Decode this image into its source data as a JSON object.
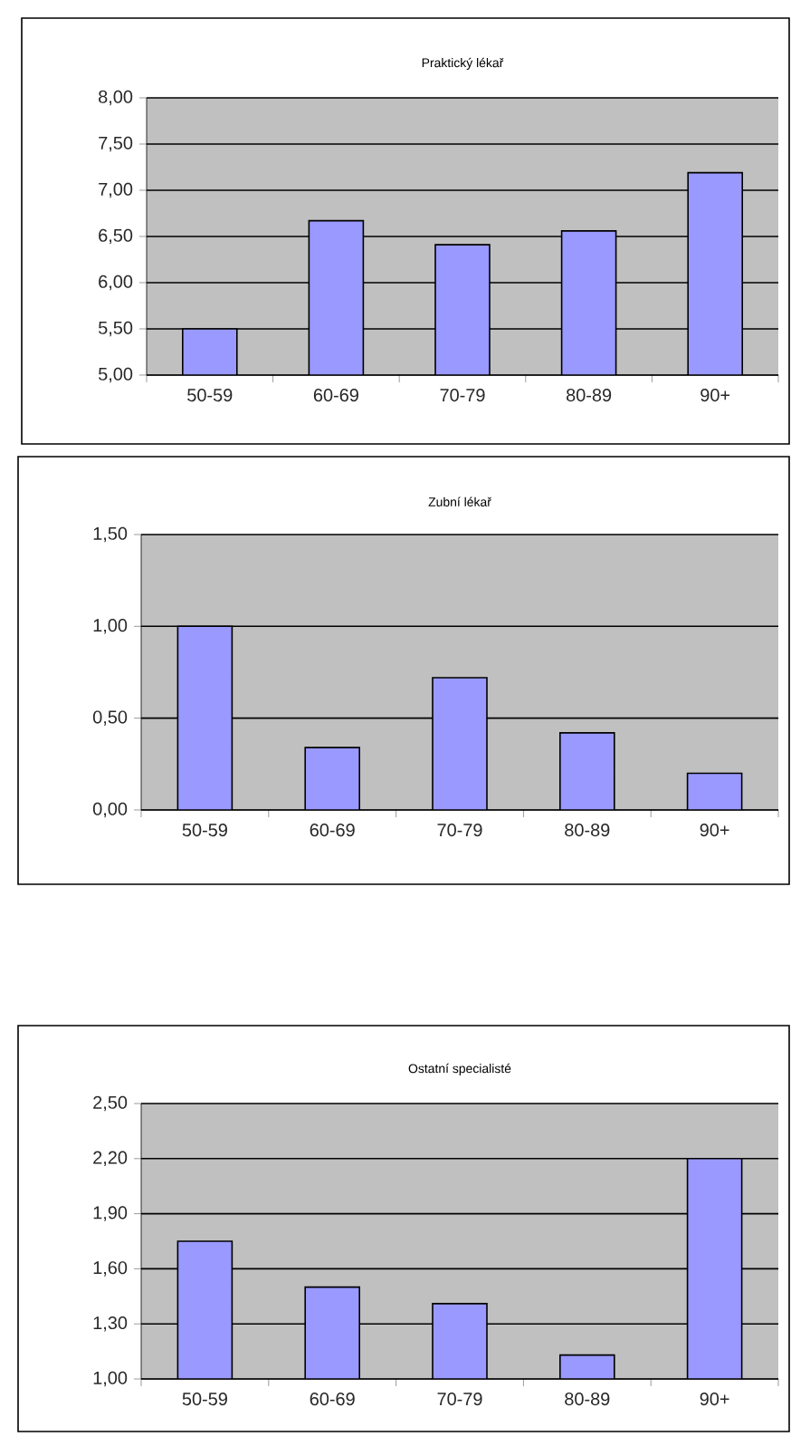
{
  "chart_data": [
    {
      "type": "bar",
      "title": "Praktický lékař",
      "categories": [
        "50-59",
        "60-69",
        "70-79",
        "80-89",
        "90+"
      ],
      "values": [
        5.5,
        6.67,
        6.41,
        6.56,
        7.19
      ],
      "color": "#9999ff",
      "ylim": [
        5,
        8
      ],
      "yticks": [
        {
          "value": 5,
          "label": "5,00"
        },
        {
          "value": 5.5,
          "label": "5,50"
        },
        {
          "value": 6,
          "label": "6,00"
        },
        {
          "value": 6.5,
          "label": "6,50"
        },
        {
          "value": 7,
          "label": "7,00"
        },
        {
          "value": 7.5,
          "label": "7,50"
        },
        {
          "value": 8,
          "label": "8,00"
        }
      ],
      "grid": "y"
    },
    {
      "type": "bar",
      "title": "Zubní lékař",
      "categories": [
        "50-59",
        "60-69",
        "70-79",
        "80-89",
        "90+"
      ],
      "values": [
        1.0,
        0.34,
        0.72,
        0.42,
        0.2
      ],
      "color": "#9999ff",
      "ylim": [
        0,
        1.5
      ],
      "yticks": [
        {
          "value": 0,
          "label": "0,00"
        },
        {
          "value": 0.5,
          "label": "0,50"
        },
        {
          "value": 1,
          "label": "1,00"
        },
        {
          "value": 1.5,
          "label": "1,50"
        }
      ],
      "grid": "y"
    },
    {
      "type": "bar",
      "title": "Ostatní specialisté",
      "categories": [
        "50-59",
        "60-69",
        "70-79",
        "80-89",
        "90+"
      ],
      "values": [
        1.75,
        1.5,
        1.41,
        1.13,
        2.2
      ],
      "color": "#9999ff",
      "ylim": [
        1,
        2.5
      ],
      "yticks": [
        {
          "value": 1,
          "label": "1,00"
        },
        {
          "value": 1.3,
          "label": "1,30"
        },
        {
          "value": 1.6,
          "label": "1,60"
        },
        {
          "value": 1.9,
          "label": "1,90"
        },
        {
          "value": 2.2,
          "label": "2,20"
        },
        {
          "value": 2.5,
          "label": "2,50"
        }
      ],
      "grid": "y"
    }
  ]
}
